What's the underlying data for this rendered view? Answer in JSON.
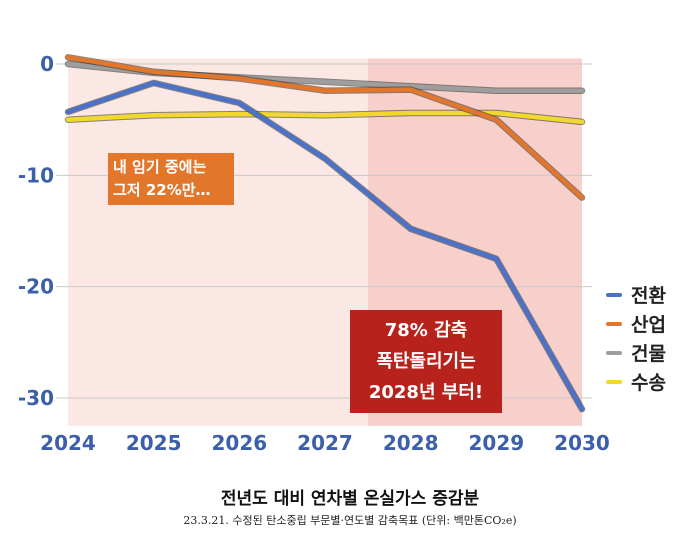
{
  "chart_data": {
    "type": "line",
    "x": [
      2024,
      2025,
      2026,
      2027,
      2028,
      2029,
      2030
    ],
    "x_tick_labels": [
      "2024",
      "2025",
      "2026",
      "2027",
      "2028",
      "2029",
      "2030"
    ],
    "y_ticks": [
      0,
      -10,
      -20,
      -30
    ],
    "y_tick_labels": [
      "0",
      "-10",
      "-20",
      "-30"
    ],
    "ylim": [
      -32.5,
      0.5
    ],
    "grid": true,
    "legend_position": "right",
    "series": [
      {
        "name": "전환",
        "color": "#4a72c9",
        "values": [
          -4.3,
          -1.7,
          -3.5,
          -8.5,
          -14.8,
          -17.5,
          -31.0
        ]
      },
      {
        "name": "산업",
        "color": "#e2772b",
        "values": [
          0.6,
          -0.7,
          -1.3,
          -2.4,
          -2.3,
          -5.0,
          -12.0
        ]
      },
      {
        "name": "건물",
        "color": "#9e9e9e",
        "values": [
          0.0,
          -0.8,
          -1.2,
          -1.6,
          -2.0,
          -2.4,
          -2.4
        ]
      },
      {
        "name": "수송",
        "color": "#f1d82c",
        "values": [
          -5.0,
          -4.6,
          -4.5,
          -4.6,
          -4.4,
          -4.4,
          -5.2
        ]
      }
    ],
    "shaded_ranges": [
      {
        "from": 2024,
        "to": 2027.5,
        "color": "#fbe7e4"
      },
      {
        "from": 2027.5,
        "to": 2030,
        "color": "#f7cfcb"
      }
    ]
  },
  "annotations": {
    "note_orange_line1": "내 임기 중에는",
    "note_orange_line2": "그저 22%만…",
    "note_red_line1": "78% 감축",
    "note_red_line2": "폭탄돌리기는",
    "note_red_line3": "2028년 부터!"
  },
  "caption": {
    "title": "전년도 대비 연차별 온실가스 증감분",
    "subtitle": "23.3.21. 수정된 탄소중립 부문별·연도별 감축목표 (단위: 백만톤CO₂e)"
  }
}
